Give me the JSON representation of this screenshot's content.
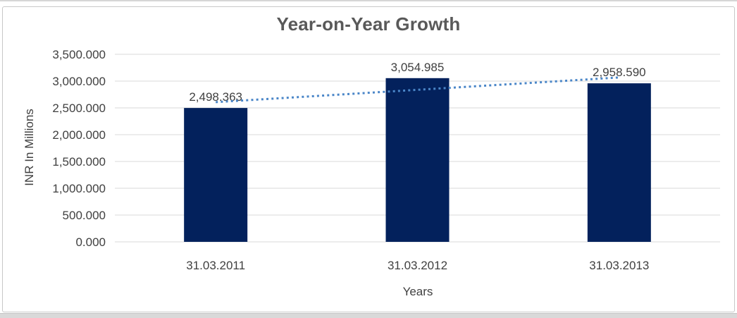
{
  "chart_data": {
    "type": "bar",
    "title": "Year-on-Year Growth",
    "categories": [
      "31.03.2011",
      "31.03.2012",
      "31.03.2013"
    ],
    "values": [
      2498.363,
      3054.985,
      2958.59
    ],
    "value_labels": [
      "2,498.363",
      "3,054.985",
      "2,958.590"
    ],
    "xlabel": "Years",
    "ylabel": "INR In Millions",
    "ylim": [
      0,
      3500
    ],
    "y_tick_step": 500,
    "y_tick_labels": [
      "0.000",
      "500.000",
      "1,000.000",
      "1,500.000",
      "2,000.000",
      "2,500.000",
      "3,000.000",
      "3,500.000"
    ],
    "grid": true,
    "legend": "none",
    "trendline": {
      "type": "linear",
      "style": "dotted"
    },
    "colors": {
      "bar": "#03215c",
      "trendline": "#4a86c8",
      "gridline": "#d9d9d9",
      "title_text": "#595959",
      "axis_text": "#404040",
      "chart_border": "#c8c8c8"
    }
  }
}
